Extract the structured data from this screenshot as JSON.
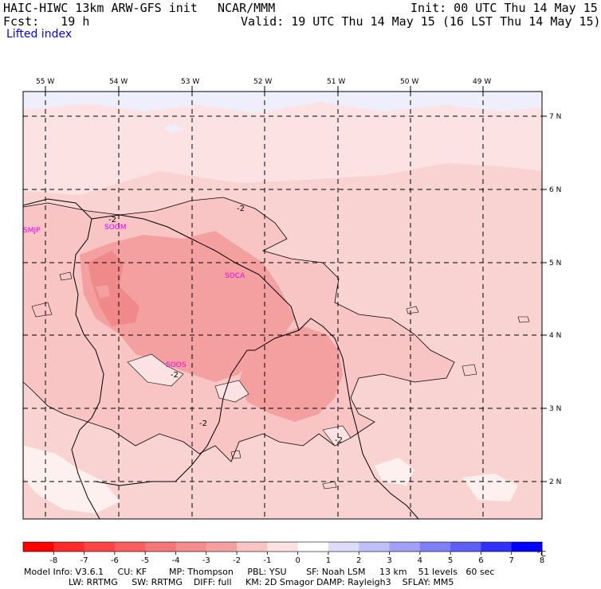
{
  "header": {
    "model": "HAIC-HIWC 13km ARW-GFS init",
    "org": "NCAR/MMM",
    "init": "Init: 00 UTC Thu 14 May 15",
    "fcst": "Fcst:   19 h",
    "valid": "Valid: 19 UTC Thu 14 May 15 (16 LST Thu 14 May 15)",
    "field": "Lifted index"
  },
  "map": {
    "lon_labels": [
      "55 W",
      "54 W",
      "53 W",
      "52 W",
      "51 W",
      "50 W",
      "49 W"
    ],
    "lat_labels": [
      "7 N",
      "6 N",
      "5 N",
      "4 N",
      "3 N",
      "2 N"
    ],
    "stations": [
      "SMJP",
      "SOGM",
      "SOCA",
      "SOOS"
    ],
    "contour_label": "-2",
    "colors": {
      "li_minus3": "#f4a0a0",
      "li_minus2": "#f8c4c4",
      "li_minus1": "#fce2e2",
      "li_zero": "#eeeefc",
      "station": "#ee00ee",
      "grid": "#000000"
    }
  },
  "colorbar": {
    "ticks": [
      "-8",
      "-7",
      "-6",
      "-5",
      "-4",
      "-3",
      "-2",
      "-1",
      "0",
      "1",
      "2",
      "3",
      "4",
      "5",
      "6",
      "7",
      "8"
    ],
    "unit": "°C",
    "colors": [
      "#ff0000",
      "#ff2a2a",
      "#ff4545",
      "#fa5e5e",
      "#f57676",
      "#f48d8d",
      "#f4a0a0",
      "#f8c4c4",
      "#fce2e2",
      "#ffffff",
      "#dcdcfa",
      "#c0c0f8",
      "#a0a0f6",
      "#7f7ff6",
      "#5f5ff6",
      "#3030f8",
      "#0000ff"
    ]
  },
  "footer": {
    "line1": "Model Info: V3.6.1     CU: KF        MP: Thompson     PBL: YSU       SF: Noah LSM     13 km    51 levels   60 sec",
    "line2": "                LW: RRTMG     SW: RRTMG    DIFF: full     KM: 2D Smagor DAMP: Rayleigh3    SFLAY: MM5"
  }
}
